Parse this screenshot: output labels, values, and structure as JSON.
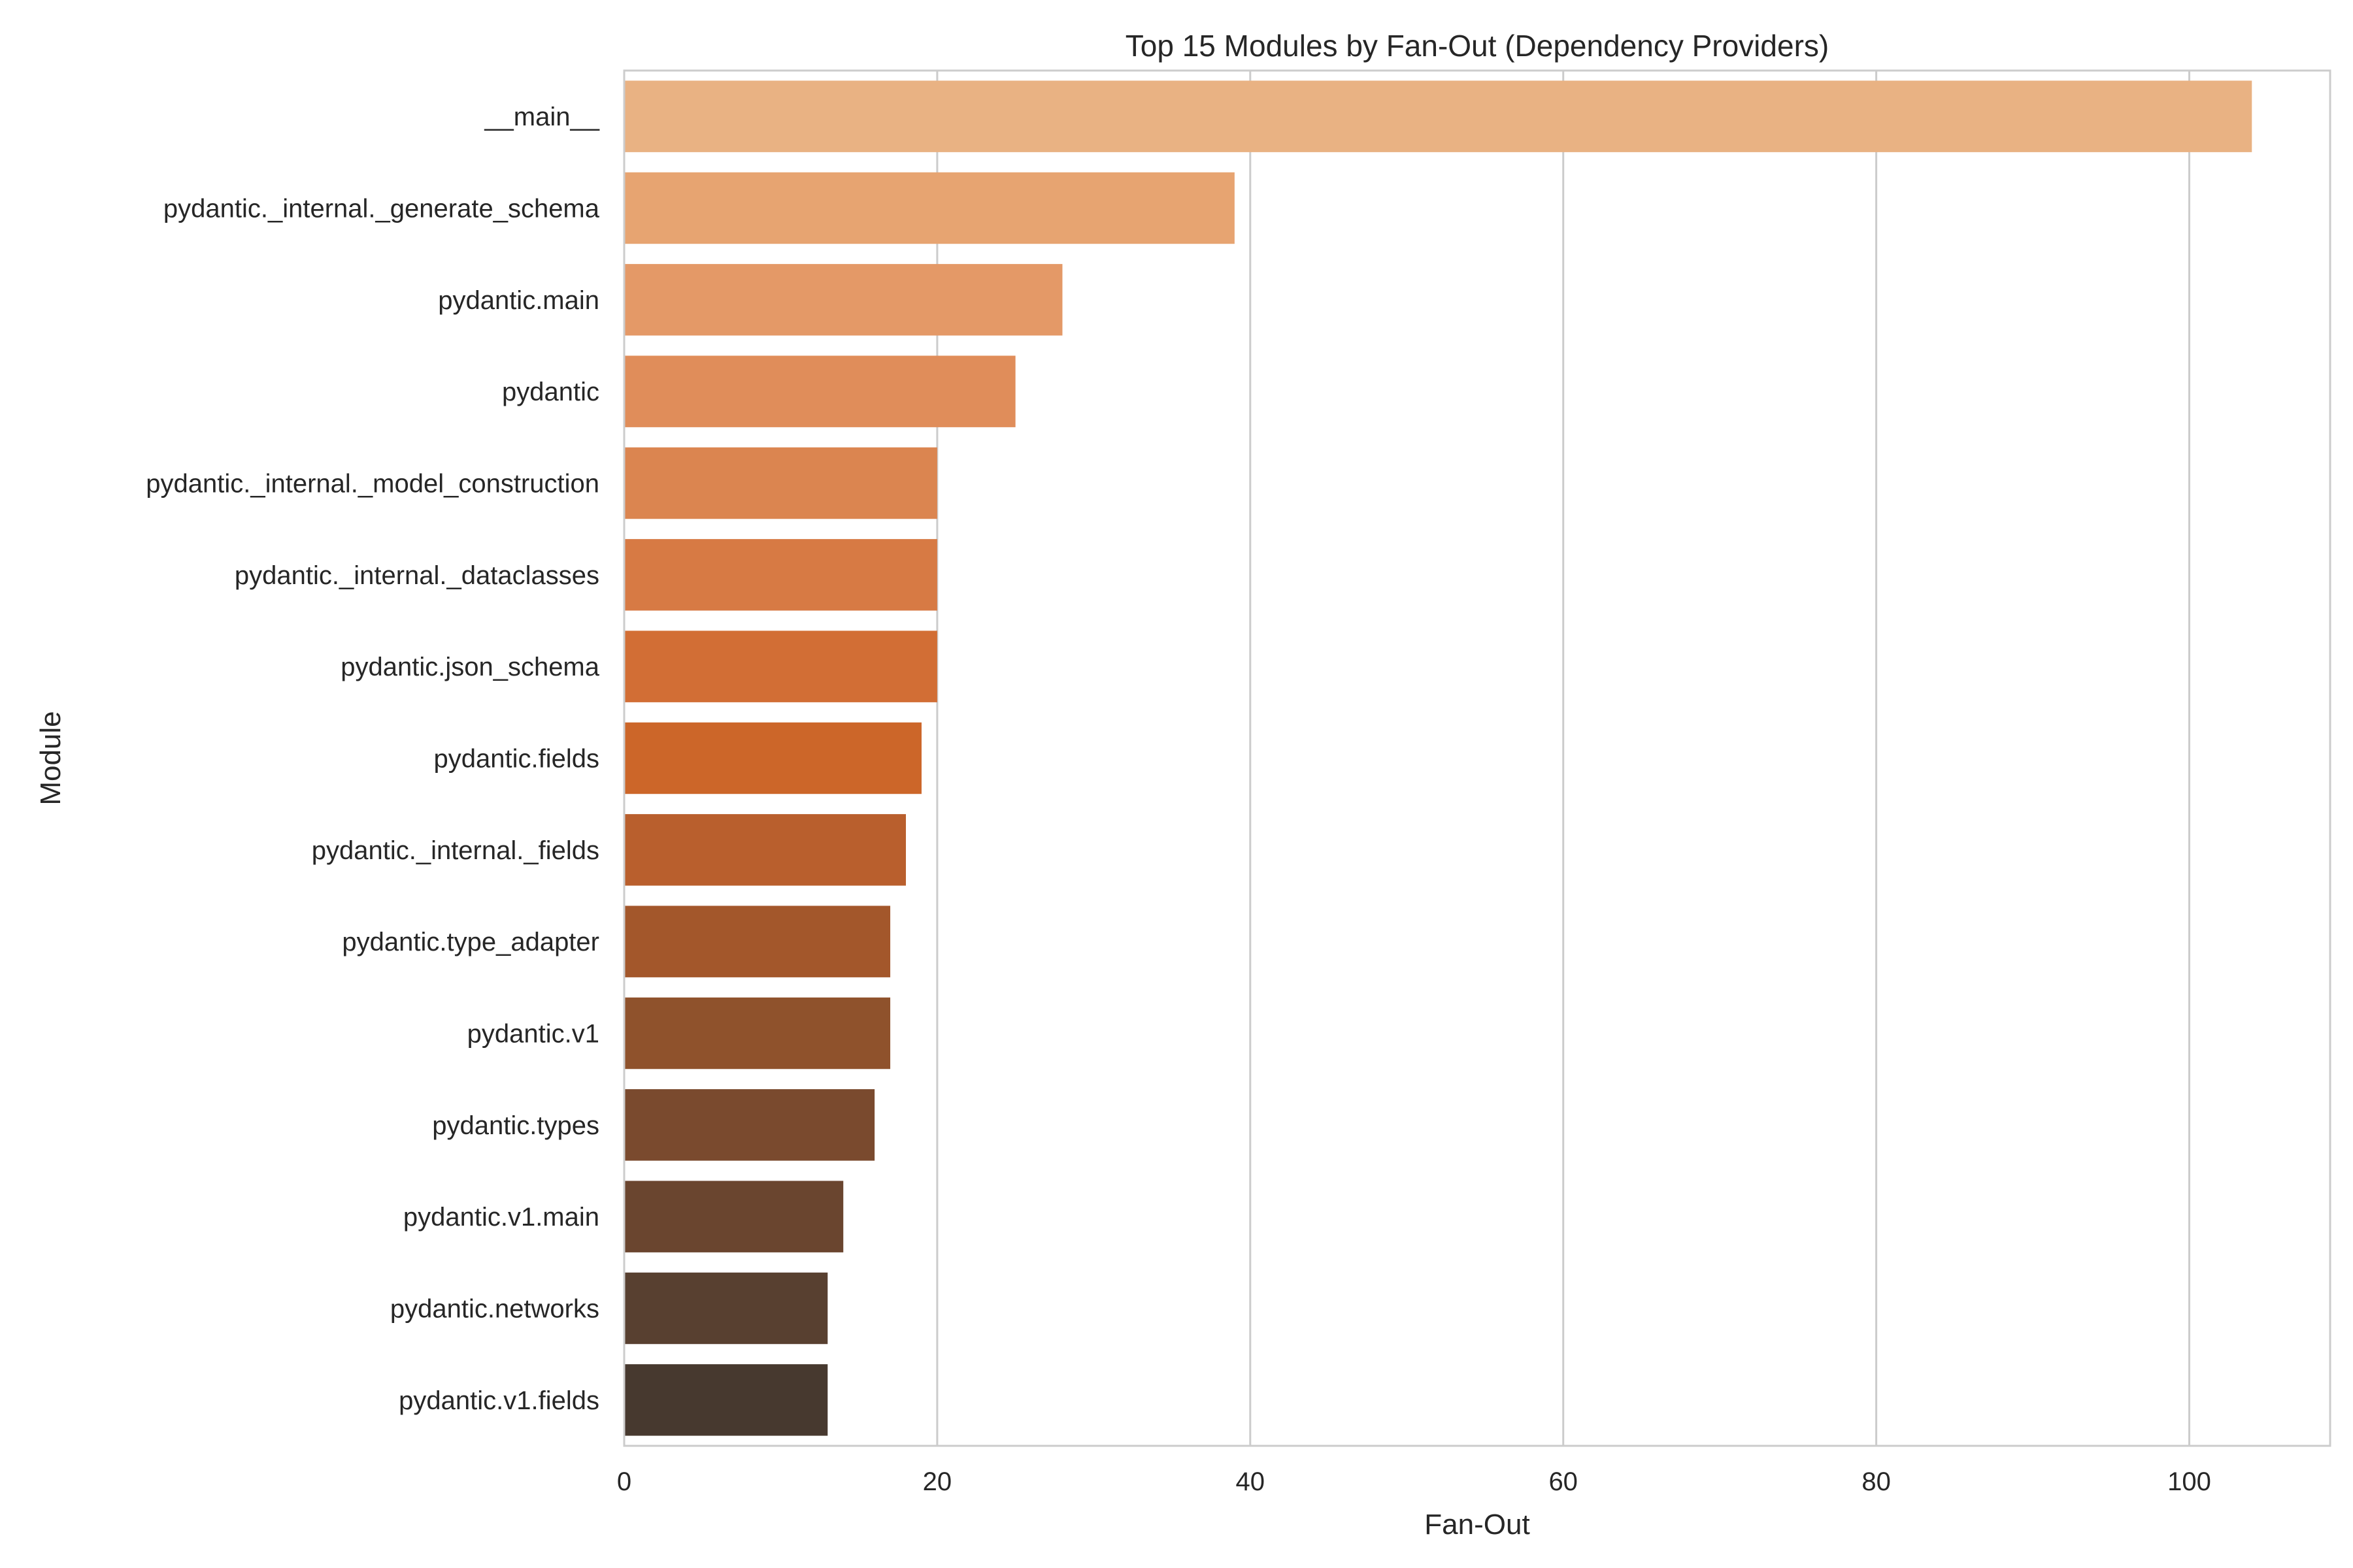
{
  "chart_data": {
    "type": "bar",
    "orientation": "horizontal",
    "title": "Top 15 Modules by Fan-Out (Dependency Providers)",
    "xlabel": "Fan-Out",
    "ylabel": "Module",
    "xlim": [
      0,
      109
    ],
    "xticks": [
      0,
      20,
      40,
      60,
      80,
      100
    ],
    "grid": "vertical",
    "categories": [
      "__main__",
      "pydantic._internal._generate_schema",
      "pydantic.main",
      "pydantic",
      "pydantic._internal._model_construction",
      "pydantic._internal._dataclasses",
      "pydantic.json_schema",
      "pydantic.fields",
      "pydantic._internal._fields",
      "pydantic.type_adapter",
      "pydantic.v1",
      "pydantic.types",
      "pydantic.v1.main",
      "pydantic.networks",
      "pydantic.v1.fields"
    ],
    "values": [
      104,
      39,
      28,
      25,
      20,
      20,
      20,
      19,
      18,
      17,
      17,
      16,
      14,
      13,
      13
    ],
    "colors": [
      "#E9B283",
      "#E7A471",
      "#E49967",
      "#E08D5A",
      "#DB8550",
      "#D77A44",
      "#D26E35",
      "#CC6629",
      "#B95F2D",
      "#A3572B",
      "#8F522C",
      "#7A4A2E",
      "#6A452F",
      "#584030",
      "#47392F"
    ]
  }
}
